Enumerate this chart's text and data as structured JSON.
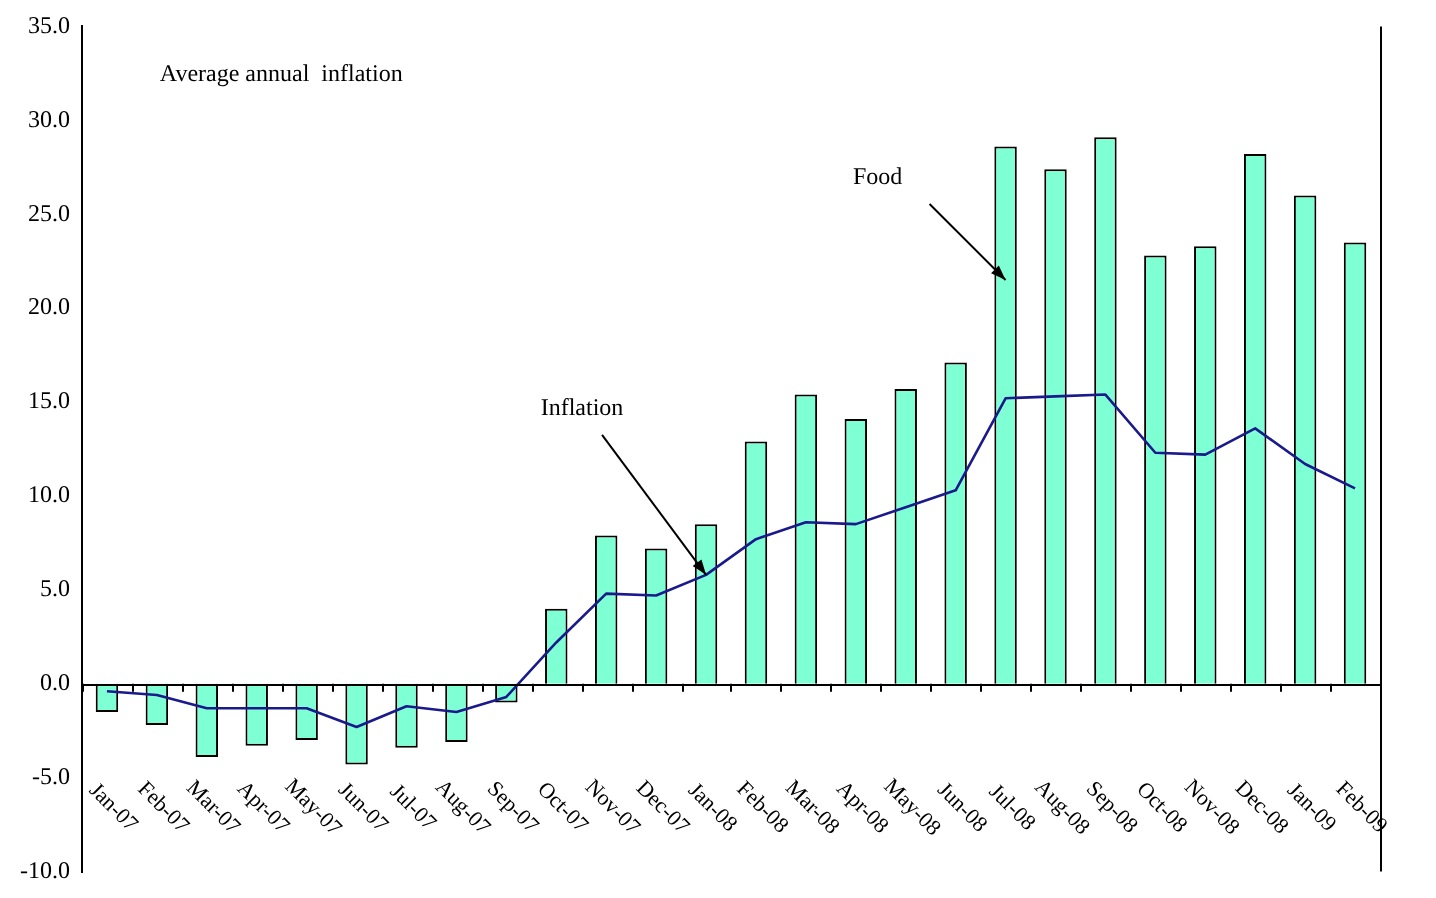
{
  "chart_data": {
    "type": "bar",
    "categories": [
      "Jan-07",
      "Feb-07",
      "Mar-07",
      "Apr-07",
      "May-07",
      "Jun-07",
      "Jul-07",
      "Aug-07",
      "Sep-07",
      "Oct-07",
      "Nov-07",
      "Dec-07",
      "Jan-08",
      "Feb-08",
      "Mar-08",
      "Apr-08",
      "May-08",
      "Jun-08",
      "Jul-08",
      "Aug-08",
      "Sep-08",
      "Oct-08",
      "Nov-08",
      "Dec-08",
      "Jan-09",
      "Feb-09"
    ],
    "series": [
      {
        "color": "#7fffd4",
        "values": [
          -1.5,
          -2.2,
          -3.9,
          -3.3,
          -3.0,
          -4.3,
          -3.4,
          -3.1,
          -1.0,
          4.0,
          7.9,
          7.2,
          8.5,
          12.9,
          15.4,
          14.1,
          15.7,
          17.1,
          28.6,
          27.4,
          29.1,
          22.8,
          23.3,
          28.2,
          26.0,
          23.5
        ]
      },
      {
        "type": "line",
        "color": "#1a1a8c",
        "values": [
          -0.4,
          -0.6,
          -1.3,
          -1.3,
          -1.3,
          -2.3,
          -1.2,
          -1.5,
          -0.7,
          2.2,
          4.8,
          4.7,
          5.8,
          7.7,
          8.6,
          8.5,
          9.4,
          10.3,
          15.2,
          15.3,
          15.4,
          12.3,
          12.2,
          13.6,
          11.7,
          10.4
        ]
      }
    ],
    "ylim": [
      -10,
      35
    ],
    "yticks": [
      {
        "value": -10,
        "label": "-10.0"
      },
      {
        "value": -5,
        "label": "-5.0"
      },
      {
        "value": 0,
        "label": "0.0"
      },
      {
        "value": 5,
        "label": "5.0"
      },
      {
        "value": 10,
        "label": "10.0"
      },
      {
        "value": 15,
        "label": "15.0"
      },
      {
        "value": 20,
        "label": "20.0"
      },
      {
        "value": 25,
        "label": "25.0"
      },
      {
        "value": 30,
        "label": "30.0"
      },
      {
        "value": 35,
        "label": "35.0"
      }
    ],
    "legend": false,
    "marker": "none",
    "annotations": [
      "Average annual  inflation",
      {
        "text": "Food",
        "x": "Jul-08",
        "y": 21.5
      },
      {
        "text": "Inflation",
        "x": "Jan-08",
        "y": 5.8
      }
    ]
  }
}
